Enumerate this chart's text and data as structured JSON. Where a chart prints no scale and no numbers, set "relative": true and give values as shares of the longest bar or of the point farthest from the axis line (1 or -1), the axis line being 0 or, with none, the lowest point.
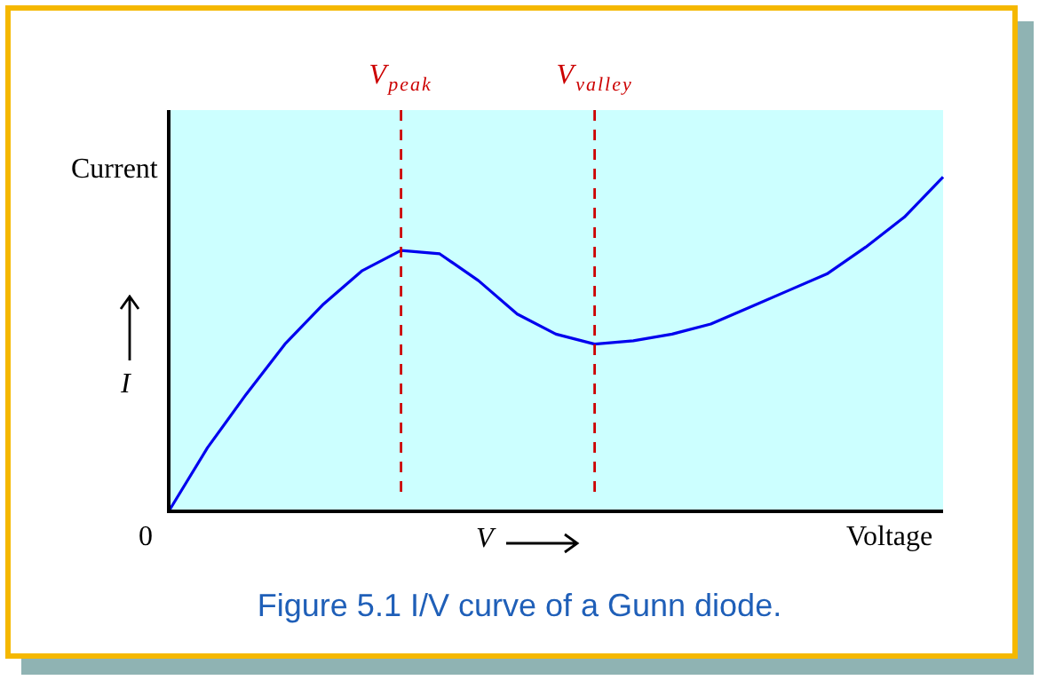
{
  "chart_data": {
    "type": "line",
    "title": "Figure 5.1  I/V curve of a Gunn diode.",
    "xlabel": "Voltage",
    "ylabel": "Current",
    "annotations": [
      "V",
      "I",
      "0"
    ],
    "relative": true,
    "categories": [
      null,
      null,
      null,
      null,
      null,
      null,
      "V$_{peak}$",
      null,
      null,
      null,
      null,
      "V$_{valley}$",
      null,
      null,
      null,
      null,
      null,
      null,
      null,
      null,
      null
    ],
    "series": [
      {
        "color": "#0000ee",
        "values": [
          0,
          0.19,
          0.35,
          0.5,
          0.62,
          0.72,
          0.78,
          0.77,
          0.69,
          0.59,
          0.53,
          0.5,
          0.51,
          0.53,
          0.56,
          0.61,
          0.66,
          0.71,
          0.79,
          0.88,
          1
        ]
      }
    ],
    "ref_lines": [
      {
        "axis": "x",
        "value": "V$_{peak}$",
        "color": "#cc0000",
        "line_style": "dashed"
      },
      {
        "axis": "x",
        "value": "V$_{valley}$",
        "color": "#cc0000",
        "line_style": "dashed"
      }
    ],
    "marker": "none",
    "line_style": "solid"
  }
}
